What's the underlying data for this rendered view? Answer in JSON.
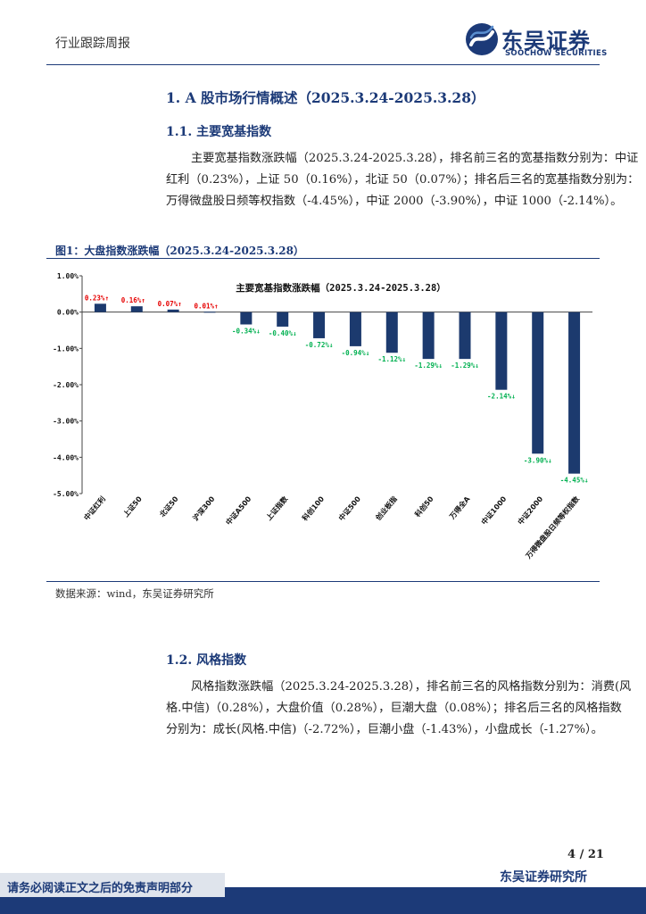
{
  "header": {
    "report_type": "行业跟踪周报",
    "logo_cn": "东吴证券",
    "logo_en": "SOOCHOW SECURITIES"
  },
  "section1": {
    "title": "1.  A 股市场行情概述（2025.3.24-2025.3.28）"
  },
  "section1_1": {
    "title": "1.1.   主要宽基指数",
    "paragraph_lines": [
      "主要宽基指数涨跌幅（2025.3.24-2025.3.28），排名前三名的宽基指数分别为：中证",
      "红利（0.23%），上证 50（0.16%），北证 50（0.07%）；排名后三名的宽基指数分别为：",
      "万得微盘股日频等权指数（-4.45%），中证 2000（-3.90%），中证 1000（-2.14%）。"
    ]
  },
  "figure1": {
    "caption": "图1：大盘指数涨跌幅（2025.3.24-2025.3.28）",
    "source": "数据来源：wind，东吴证券研究所"
  },
  "chart_data": {
    "type": "bar",
    "title": "主要宽基指数涨跌幅（2025.3.24-2025.3.28）",
    "categories": [
      "中证红利",
      "上证50",
      "北证50",
      "沪深300",
      "中证A500",
      "上证指数",
      "科创100",
      "中证500",
      "创业板指",
      "科创50",
      "万得全A",
      "中证1000",
      "中证2000",
      "万得微盘股日频等权指数"
    ],
    "values": [
      0.23,
      0.16,
      0.07,
      0.01,
      -0.34,
      -0.4,
      -0.72,
      -0.94,
      -1.12,
      -1.29,
      -1.29,
      -2.14,
      -3.9,
      -4.45
    ],
    "data_labels": [
      "0.23%↑",
      "0.16%↑",
      "0.07%↑",
      "0.01%↑",
      "-0.34%↓",
      "-0.40%↓",
      "-0.72%↓",
      "-0.94%↓",
      "-1.12%↓",
      "-1.29%↓",
      "-1.29%↓",
      "-2.14%↓",
      "-3.90%↓",
      "-4.45%↓"
    ],
    "y_ticks": [
      "1.00%",
      "0.00%",
      "-1.00%",
      "-2.00%",
      "-3.00%",
      "-4.00%",
      "-5.00%"
    ],
    "ylim": [
      -5,
      1
    ],
    "xlabel": "",
    "ylabel": "",
    "grid": false,
    "bar_color": "#1c3a6e",
    "positive_label_color": "#e60000",
    "negative_label_color": "#00b050"
  },
  "section1_2": {
    "title": "1.2.   风格指数",
    "paragraph_lines": [
      "风格指数涨跌幅（2025.3.24-2025.3.28），排名前三名的风格指数分别为：消费(风",
      "格.中信)（0.28%），大盘价值（0.28%），巨潮大盘（0.08%）；排名后三名的风格指数",
      "分别为：成长(风格.中信)（-2.72%），巨潮小盘（-1.43%），小盘成长（-1.27%）。"
    ]
  },
  "footer": {
    "page_number": "4 / 21",
    "org": "东吴证券研究所",
    "disclaimer": "请务必阅读正文之后的免责声明部分"
  }
}
